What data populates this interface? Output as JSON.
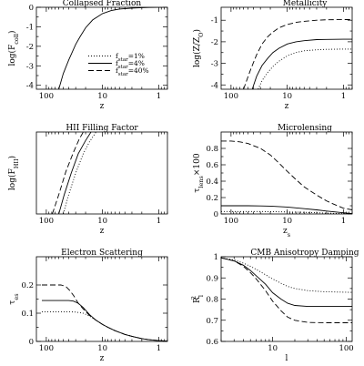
{
  "legend": {
    "entries": [
      {
        "label": "f",
        "sub": "star",
        "value": "=1%",
        "style": "dotted"
      },
      {
        "label": "f",
        "sub": "star",
        "value": "=4%",
        "style": "solid"
      },
      {
        "label": "f",
        "sub": "star",
        "value": "=40%",
        "style": "dashed"
      }
    ]
  },
  "chart_data": [
    {
      "type": "line",
      "title": "Collapsed Fraction",
      "ylabel": {
        "main": "log(F",
        "sub": "coll",
        "tail": ")"
      },
      "xlabel": {
        "main": "z"
      },
      "xscale": "log",
      "xreversed": true,
      "xlim": [
        150,
        0.7
      ],
      "ylim": [
        -4.2,
        0
      ],
      "xticks": [
        {
          "v": 100,
          "label": "100"
        },
        {
          "v": 10,
          "label": "10"
        },
        {
          "v": 1,
          "label": "1"
        }
      ],
      "yticks": [
        {
          "v": 0,
          "label": "0"
        },
        {
          "v": -1,
          "label": "-1"
        },
        {
          "v": -2,
          "label": "-2"
        },
        {
          "v": -3,
          "label": "-3"
        },
        {
          "v": -4,
          "label": "-4"
        }
      ],
      "legend": "center-right",
      "series": [
        {
          "style": "solid",
          "x": [
            60,
            50,
            40,
            30,
            25,
            20,
            15,
            10,
            7,
            5,
            3,
            2,
            1.5,
            1,
            0.7
          ],
          "y": [
            -4.2,
            -3.4,
            -2.7,
            -1.9,
            -1.5,
            -1.05,
            -0.65,
            -0.32,
            -0.17,
            -0.09,
            -0.04,
            -0.02,
            -0.01,
            -0.005,
            0
          ]
        }
      ]
    },
    {
      "type": "line",
      "title": "Metallicity",
      "ylabel": {
        "main": "log(Z/Z",
        "sub": "O",
        "tail": ")"
      },
      "xlabel": {
        "main": "z"
      },
      "xscale": "log",
      "xreversed": true,
      "xlim": [
        150,
        0.7
      ],
      "ylim": [
        -4.2,
        -0.4
      ],
      "xticks": [
        {
          "v": 100,
          "label": "100"
        },
        {
          "v": 10,
          "label": "10"
        },
        {
          "v": 1,
          "label": "1"
        }
      ],
      "yticks": [
        {
          "v": -1,
          "label": "-1"
        },
        {
          "v": -2,
          "label": "-2"
        },
        {
          "v": -3,
          "label": "-3"
        },
        {
          "v": -4,
          "label": "-4"
        }
      ],
      "series": [
        {
          "name": "f_star=1%",
          "style": "dotted",
          "x": [
            33,
            28,
            22,
            18,
            14,
            10,
            7,
            5,
            3,
            2,
            1,
            0.7
          ],
          "y": [
            -4.2,
            -3.8,
            -3.4,
            -3.15,
            -2.9,
            -2.65,
            -2.5,
            -2.42,
            -2.37,
            -2.35,
            -2.34,
            -2.34
          ]
        },
        {
          "name": "f_star=4%",
          "style": "solid",
          "x": [
            42,
            35,
            28,
            22,
            18,
            14,
            10,
            7,
            5,
            3,
            2,
            1,
            0.7
          ],
          "y": [
            -4.2,
            -3.6,
            -3.1,
            -2.75,
            -2.5,
            -2.3,
            -2.1,
            -2.0,
            -1.95,
            -1.9,
            -1.89,
            -1.88,
            -1.88
          ]
        },
        {
          "name": "f_star=40%",
          "style": "dashed",
          "x": [
            60,
            45,
            35,
            28,
            22,
            18,
            14,
            10,
            7,
            5,
            3,
            2,
            1,
            0.7
          ],
          "y": [
            -4.2,
            -3.3,
            -2.6,
            -2.1,
            -1.75,
            -1.55,
            -1.35,
            -1.2,
            -1.1,
            -1.05,
            -1.0,
            -0.98,
            -0.97,
            -0.97
          ]
        }
      ]
    },
    {
      "type": "line",
      "title": "HII Filling Factor",
      "ylabel": {
        "main": "log(F",
        "sub": "HII",
        "tail": ")"
      },
      "xlabel": {
        "main": "z"
      },
      "xscale": "log",
      "xreversed": true,
      "xlim": [
        150,
        0.7
      ],
      "ylim": [
        -3.4,
        0
      ],
      "xticks": [
        {
          "v": 100,
          "label": "100"
        },
        {
          "v": 10,
          "label": "10"
        },
        {
          "v": 1,
          "label": "1"
        }
      ],
      "yticks": [],
      "series": [
        {
          "name": "f_star=1%",
          "style": "dotted",
          "x": [
            50,
            40,
            30,
            22,
            17,
            13
          ],
          "y": [
            -3.4,
            -2.6,
            -1.7,
            -0.9,
            -0.4,
            0
          ]
        },
        {
          "name": "f_star=4%",
          "style": "solid",
          "x": [
            60,
            48,
            36,
            27,
            20,
            16
          ],
          "y": [
            -3.4,
            -2.6,
            -1.7,
            -0.9,
            -0.35,
            0
          ]
        },
        {
          "name": "f_star=40%",
          "style": "dashed",
          "x": [
            78,
            60,
            45,
            33,
            26,
            22
          ],
          "y": [
            -3.4,
            -2.6,
            -1.65,
            -0.85,
            -0.3,
            0
          ]
        }
      ]
    },
    {
      "type": "line",
      "title": "Microlensing",
      "ylabel": {
        "main": "τ",
        "sub": "lens",
        "tail": "×100"
      },
      "xlabel": {
        "main": "z",
        "sub": "s"
      },
      "xscale": "log",
      "xreversed": true,
      "xlim": [
        150,
        0.7
      ],
      "ylim": [
        0,
        1.0
      ],
      "xticks": [
        {
          "v": 100,
          "label": "100"
        },
        {
          "v": 10,
          "label": "10"
        },
        {
          "v": 1,
          "label": "1"
        }
      ],
      "yticks": [
        {
          "v": 0,
          "label": "0"
        },
        {
          "v": 0.2,
          "label": "0.2"
        },
        {
          "v": 0.4,
          "label": "0.4"
        },
        {
          "v": 0.6,
          "label": "0.6"
        },
        {
          "v": 0.8,
          "label": "0.8"
        }
      ],
      "series": [
        {
          "name": "f_star=1%",
          "style": "dotted",
          "x": [
            150,
            100,
            50,
            30,
            20,
            10,
            5,
            3,
            2,
            1,
            0.7
          ],
          "y": [
            0.03,
            0.03,
            0.03,
            0.03,
            0.028,
            0.025,
            0.02,
            0.015,
            0.01,
            0.004,
            0.001
          ]
        },
        {
          "name": "f_star=4%",
          "style": "solid",
          "x": [
            150,
            100,
            50,
            30,
            20,
            10,
            5,
            3,
            2,
            1,
            0.7
          ],
          "y": [
            0.1,
            0.1,
            0.1,
            0.098,
            0.095,
            0.085,
            0.065,
            0.05,
            0.035,
            0.015,
            0.005
          ]
        },
        {
          "name": "f_star=40%",
          "style": "dashed",
          "x": [
            150,
            100,
            70,
            50,
            30,
            20,
            15,
            10,
            7,
            5,
            3,
            2,
            1.5,
            1,
            0.7
          ],
          "y": [
            0.89,
            0.89,
            0.88,
            0.86,
            0.8,
            0.72,
            0.64,
            0.52,
            0.42,
            0.33,
            0.23,
            0.16,
            0.12,
            0.07,
            0.05
          ]
        }
      ]
    },
    {
      "type": "line",
      "title": "Electron Scattering",
      "ylabel": {
        "main": "τ",
        "sub": "es",
        "tail": ""
      },
      "xlabel": {
        "main": "z"
      },
      "xscale": "log",
      "xreversed": true,
      "xlim": [
        150,
        0.7
      ],
      "ylim": [
        0,
        0.3
      ],
      "xticks": [
        {
          "v": 100,
          "label": "100"
        },
        {
          "v": 10,
          "label": "10"
        },
        {
          "v": 1,
          "label": "1"
        }
      ],
      "yticks": [
        {
          "v": 0,
          "label": "0"
        },
        {
          "v": 0.1,
          "label": "0.1"
        },
        {
          "v": 0.2,
          "label": "0.2"
        }
      ],
      "series": [
        {
          "name": "f_star=1%",
          "style": "dotted",
          "x": [
            120,
            70,
            40,
            30,
            22,
            17,
            13,
            10,
            8,
            6,
            4,
            3,
            2,
            1.5,
            1,
            0.7
          ],
          "y": [
            0.105,
            0.105,
            0.105,
            0.104,
            0.1,
            0.09,
            0.075,
            0.06,
            0.05,
            0.038,
            0.025,
            0.018,
            0.01,
            0.006,
            0.003,
            0.001
          ]
        },
        {
          "name": "f_star=4%",
          "style": "solid",
          "x": [
            120,
            70,
            40,
            33,
            27,
            22,
            17,
            13,
            10,
            8,
            6,
            4,
            3,
            2,
            1.5,
            1,
            0.7
          ],
          "y": [
            0.145,
            0.145,
            0.145,
            0.143,
            0.135,
            0.12,
            0.095,
            0.075,
            0.06,
            0.05,
            0.038,
            0.025,
            0.018,
            0.01,
            0.006,
            0.003,
            0.001
          ]
        },
        {
          "name": "f_star=40%",
          "style": "dashed",
          "x": [
            120,
            70,
            55,
            45,
            38,
            32,
            27,
            22,
            17,
            13,
            10,
            8,
            6,
            4,
            3,
            2,
            1.5,
            1,
            0.7
          ],
          "y": [
            0.2,
            0.2,
            0.2,
            0.195,
            0.18,
            0.16,
            0.135,
            0.115,
            0.092,
            0.075,
            0.06,
            0.05,
            0.038,
            0.025,
            0.018,
            0.01,
            0.006,
            0.003,
            0.001
          ]
        }
      ]
    },
    {
      "type": "line",
      "title": "CMB Anisotropy Damping",
      "ylabel": {
        "main": "R",
        "sub": "l",
        "sup": "2",
        "tail": ""
      },
      "xlabel": {
        "main": "l"
      },
      "xscale": "log",
      "xreversed": false,
      "xlim": [
        2,
        120
      ],
      "ylim": [
        0.6,
        1.0
      ],
      "xticks": [
        {
          "v": 10,
          "label": "10"
        },
        {
          "v": 100,
          "label": "100"
        }
      ],
      "yticks": [
        {
          "v": 0.6,
          "label": "0.6"
        },
        {
          "v": 0.7,
          "label": "0.7"
        },
        {
          "v": 0.8,
          "label": "0.8"
        },
        {
          "v": 0.9,
          "label": "0.9"
        },
        {
          "v": 1.0,
          "label": "1"
        }
      ],
      "series": [
        {
          "name": "f_star=1%",
          "style": "dotted",
          "x": [
            2,
            3,
            4,
            5,
            6,
            8,
            10,
            13,
            16,
            20,
            30,
            50,
            80,
            120
          ],
          "y": [
            0.995,
            0.985,
            0.97,
            0.955,
            0.94,
            0.915,
            0.895,
            0.875,
            0.86,
            0.85,
            0.84,
            0.835,
            0.833,
            0.832
          ]
        },
        {
          "name": "f_star=4%",
          "style": "solid",
          "x": [
            2,
            3,
            4,
            5,
            6,
            8,
            10,
            13,
            16,
            20,
            30,
            50,
            80,
            120
          ],
          "y": [
            0.995,
            0.98,
            0.96,
            0.935,
            0.91,
            0.87,
            0.83,
            0.8,
            0.78,
            0.77,
            0.765,
            0.765,
            0.765,
            0.765
          ]
        },
        {
          "name": "f_star=40%",
          "style": "dashed",
          "x": [
            2,
            3,
            4,
            5,
            6,
            8,
            10,
            13,
            16,
            20,
            30,
            50,
            80,
            120
          ],
          "y": [
            0.995,
            0.98,
            0.955,
            0.925,
            0.895,
            0.84,
            0.79,
            0.745,
            0.715,
            0.7,
            0.69,
            0.688,
            0.688,
            0.688
          ]
        }
      ]
    }
  ]
}
